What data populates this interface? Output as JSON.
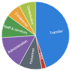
{
  "chart_data": {
    "type": "pie",
    "categories": [
      "Transfer",
      "TRA",
      "Personnel",
      "Administration",
      "Staff & services",
      "Conference",
      "Contribution"
    ],
    "values": [
      45,
      2,
      11,
      16,
      11,
      7,
      8
    ],
    "colors": [
      "#2f7fd8",
      "#c0392b",
      "#5a6670",
      "#7e5ea8",
      "#4f9a4f",
      "#e8a23a",
      "#a8c24a"
    ]
  }
}
